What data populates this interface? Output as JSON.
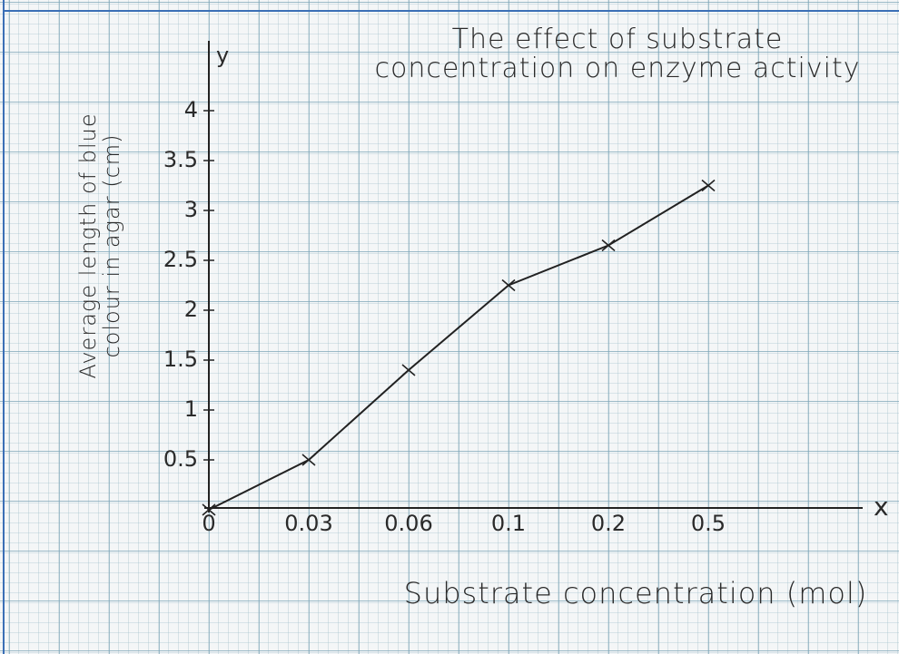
{
  "chart_data": {
    "type": "line",
    "title": "The effect of substrate concentration on enzyme activity",
    "x_label": "Substrate concentration (mol)",
    "y_label": "Average length of blue colour in agar (cm)",
    "y_axis_symbol": "y",
    "x_axis_symbol": "x",
    "categories": [
      "0",
      "0.03",
      "0.06",
      "0.1",
      "0.2",
      "0.5"
    ],
    "values": [
      0,
      0.5,
      1.4,
      2.25,
      2.65,
      3.25
    ],
    "color": "#222222",
    "ylim": [
      0,
      4.5
    ],
    "yticks": [
      0.5,
      1,
      1.5,
      2,
      2.5,
      3,
      3.5,
      4
    ]
  }
}
